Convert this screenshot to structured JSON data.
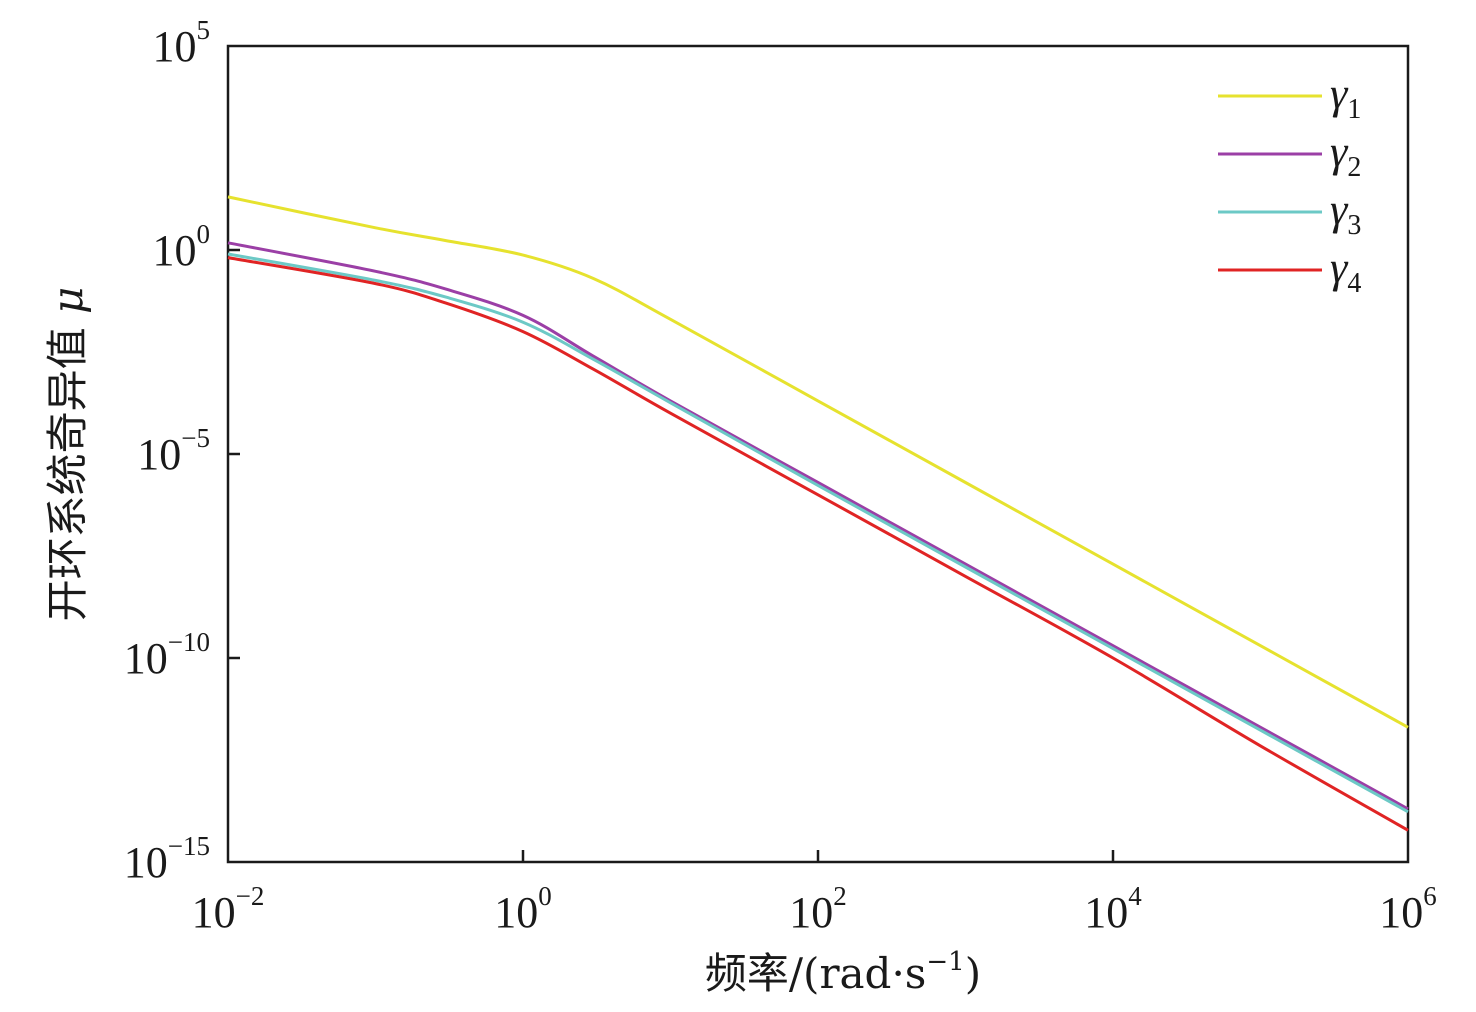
{
  "chart_data": {
    "type": "line",
    "title": "",
    "xlabel": "频率/(rad·s",
    "xlabel_exp": "−1",
    "xlabel_tail": ")",
    "ylabel": "开环系统奇异值",
    "ylabel_symbol": "μ",
    "x_scale": "log",
    "y_scale": "log",
    "xlim": [
      0.01,
      1000000
    ],
    "ylim": [
      1e-15,
      100000
    ],
    "x_ticks": [
      {
        "base": "10",
        "exp": "−2",
        "value": 0.01
      },
      {
        "base": "10",
        "exp": "0",
        "value": 1
      },
      {
        "base": "10",
        "exp": "2",
        "value": 100
      },
      {
        "base": "10",
        "exp": "4",
        "value": 10000
      },
      {
        "base": "10",
        "exp": "6",
        "value": 1000000
      }
    ],
    "y_ticks": [
      {
        "base": "10",
        "exp": "5",
        "value": 100000
      },
      {
        "base": "10",
        "exp": "0",
        "value": 1
      },
      {
        "base": "10",
        "exp": "−5",
        "value": 1e-05
      },
      {
        "base": "10",
        "exp": "−10",
        "value": 1e-10
      },
      {
        "base": "10",
        "exp": "−15",
        "value": 1e-15
      }
    ],
    "grid": false,
    "legend_position": "top-right",
    "x": [
      0.01,
      0.1,
      0.3,
      1,
      3,
      10,
      100,
      1000,
      10000,
      100000,
      1000000
    ],
    "series": [
      {
        "name": "γ",
        "subscript": "1",
        "color": "#e6e22e",
        "values": [
          20,
          3.5,
          1.7,
          0.75,
          0.2,
          0.02,
          0.0002,
          2e-06,
          2e-08,
          2e-10,
          2e-12
        ]
      },
      {
        "name": "γ",
        "subscript": "2",
        "color": "#9b3fa6",
        "values": [
          1.5,
          0.3,
          0.11,
          0.025,
          0.0025,
          0.0002,
          2e-06,
          2e-08,
          2e-10,
          2e-12,
          2e-14
        ]
      },
      {
        "name": "γ",
        "subscript": "3",
        "color": "#6cc9c6",
        "values": [
          0.8,
          0.18,
          0.07,
          0.017,
          0.0021,
          0.00018,
          1.7e-06,
          1.7e-08,
          1.7e-10,
          1.7e-12,
          1.7e-14
        ]
      },
      {
        "name": "γ",
        "subscript": "4",
        "color": "#e02424",
        "values": [
          0.65,
          0.15,
          0.05,
          0.01,
          0.0012,
          0.0001,
          1e-06,
          1e-08,
          1e-10,
          7e-13,
          6e-15
        ]
      }
    ]
  }
}
